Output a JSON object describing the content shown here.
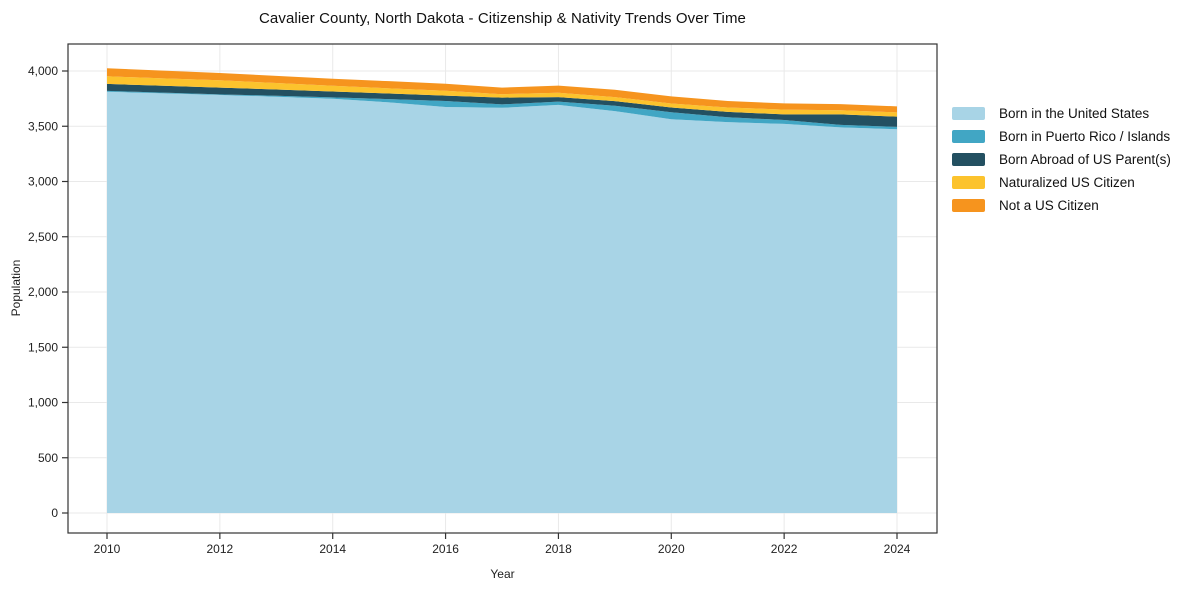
{
  "chart_data": {
    "type": "area",
    "stacked": true,
    "title": "Cavalier County, North Dakota - Citizenship & Nativity Trends Over Time",
    "xlabel": "Year",
    "ylabel": "Population",
    "grid": true,
    "legend_position": "right",
    "x": [
      2010,
      2011,
      2012,
      2013,
      2014,
      2015,
      2016,
      2017,
      2018,
      2019,
      2020,
      2021,
      2022,
      2023,
      2024
    ],
    "xticks": [
      2010,
      2012,
      2014,
      2016,
      2018,
      2020,
      2022,
      2024
    ],
    "xtick_labels": [
      "2010",
      "2012",
      "2014",
      "2016",
      "2018",
      "2020",
      "2022",
      "2024"
    ],
    "yticks": [
      0,
      500,
      1000,
      1500,
      2000,
      2500,
      3000,
      3500,
      4000
    ],
    "ytick_labels": [
      "0",
      "500",
      "1,000",
      "1,500",
      "2,000",
      "2,500",
      "3,000",
      "3,500",
      "4,000"
    ],
    "ylim": [
      0,
      4000
    ],
    "series": [
      {
        "name": "Born in the United States",
        "color": "#a8d4e6",
        "values": [
          3812,
          3797,
          3783,
          3767,
          3749,
          3716,
          3674,
          3667,
          3693,
          3637,
          3563,
          3537,
          3521,
          3490,
          3473
        ]
      },
      {
        "name": "Born in Puerto Rico / Islands",
        "color": "#41a6c4",
        "values": [
          8,
          7,
          6,
          9,
          12,
          30,
          55,
          31,
          30,
          49,
          64,
          44,
          36,
          22,
          21
        ]
      },
      {
        "name": "Born Abroad of US Parent(s)",
        "color": "#235061",
        "values": [
          63,
          62,
          61,
          57,
          54,
          50,
          48,
          61,
          41,
          41,
          43,
          49,
          50,
          95,
          93
        ]
      },
      {
        "name": "Naturalized US Citizen",
        "color": "#fcc32d",
        "values": [
          69,
          67,
          66,
          58,
          51,
          47,
          44,
          31,
          39,
          37,
          36,
          40,
          44,
          38,
          39
        ]
      },
      {
        "name": "Not a US Citizen",
        "color": "#f6941e",
        "values": [
          73,
          70,
          66,
          65,
          64,
          65,
          64,
          60,
          65,
          66,
          64,
          58,
          56,
          55,
          54
        ]
      }
    ]
  }
}
